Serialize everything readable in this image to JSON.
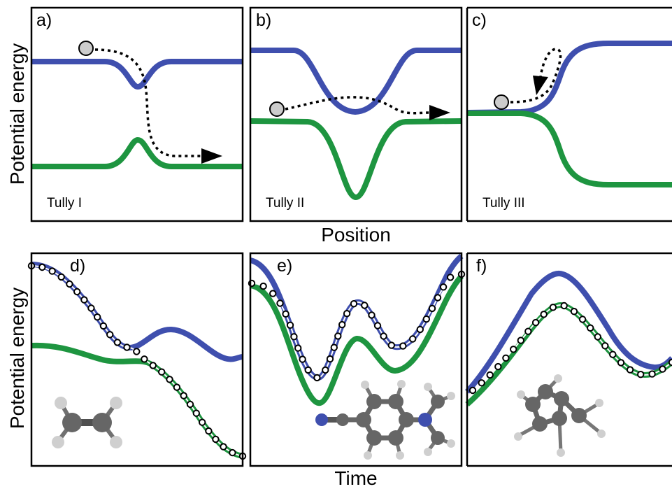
{
  "axis_titles": {
    "top_y": "Potential energy",
    "top_x": "Position",
    "bottom_y": "Potential energy",
    "bottom_x": "Time"
  },
  "panels": [
    {
      "letter": "a)",
      "label": "Tully I"
    },
    {
      "letter": "b)",
      "label": "Tully II"
    },
    {
      "letter": "c)",
      "label": "Tully III"
    },
    {
      "letter": "d)",
      "label": ""
    },
    {
      "letter": "e)",
      "label": ""
    },
    {
      "letter": "f)",
      "label": ""
    }
  ],
  "colors": {
    "upper_state": "#3f4fae",
    "lower_state": "#1e9540",
    "frame": "#000000",
    "particle": "#cccccc",
    "atom_carbon": "#707070",
    "atom_hydrogen": "#cfcfcf",
    "atom_nitrogen": "#3f4fae"
  },
  "molecule_icons": [
    "ethylene-molecule-icon",
    "dmabn-molecule-icon",
    "fulvene-molecule-icon"
  ]
}
